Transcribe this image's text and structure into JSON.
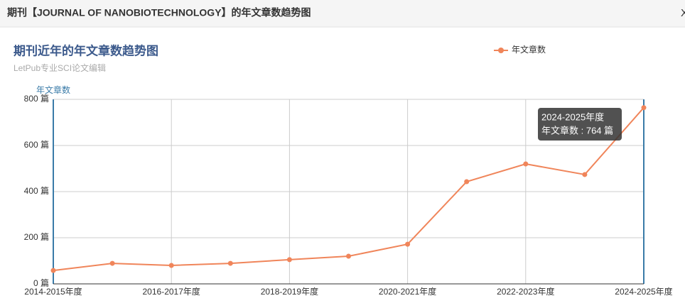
{
  "header": {
    "title": "期刊【JOURNAL OF NANOBIOTECHNOLOGY】的年文章数趋势图",
    "close": "X"
  },
  "chart_data": {
    "type": "line",
    "title": "期刊近年的年文章数趋势图",
    "subtitle": "LetPub专业SCI论文编辑",
    "y_label": "年文章数",
    "categories": [
      "2014-2015年度",
      null,
      "2016-2017年度",
      null,
      "2018-2019年度",
      null,
      "2020-2021年度",
      null,
      "2022-2023年度",
      null,
      "2024-2025年度"
    ],
    "series": [
      {
        "name": "年文章数",
        "color": "#f0855a",
        "values": [
          58,
          89,
          80,
          89,
          105,
          120,
          172,
          443,
          520,
          474,
          764
        ]
      }
    ],
    "ylim": [
      0,
      800
    ],
    "yticks": [
      {
        "value": 0,
        "label": "0 篇"
      },
      {
        "value": 200,
        "label": "200 篇"
      },
      {
        "value": 400,
        "label": "400 篇"
      },
      {
        "value": 600,
        "label": "600 篇"
      },
      {
        "value": 800,
        "label": "800 篇"
      }
    ],
    "grid": true,
    "legend": "top-right",
    "tooltip": {
      "title": "2024-2025年度",
      "text": "年文章数 : 764 篇"
    }
  }
}
